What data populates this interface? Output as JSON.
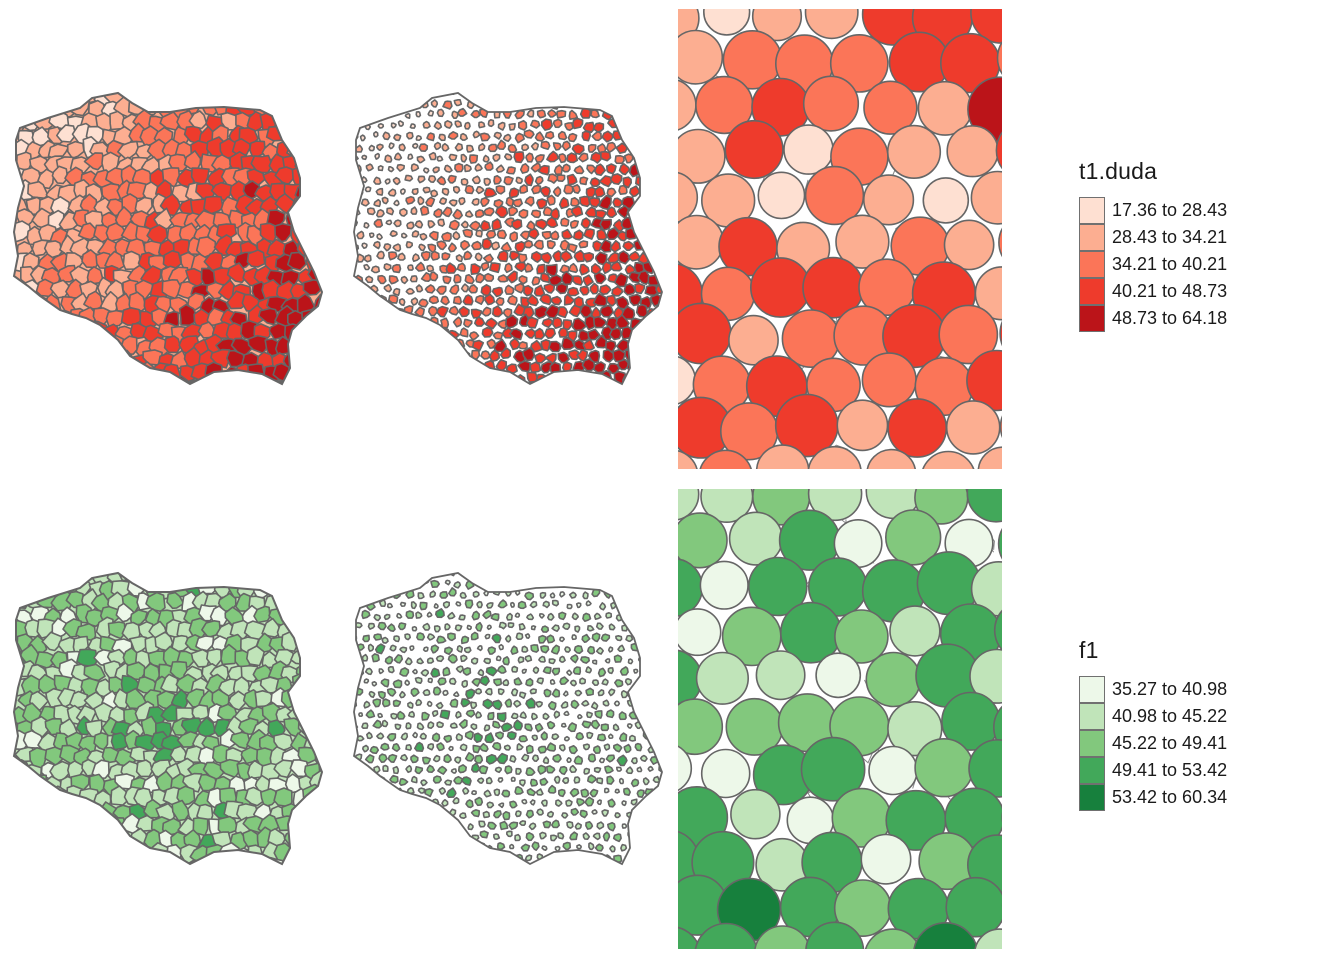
{
  "maps": [
    {
      "id": "t1-duda",
      "legend": {
        "title": "t1.duda",
        "classes": [
          {
            "label": "17.36 to 28.43",
            "color": "#fee0d2"
          },
          {
            "label": "28.43 to 34.21",
            "color": "#fcae91"
          },
          {
            "label": "34.21 to 40.21",
            "color": "#fb7558"
          },
          {
            "label": "40.21 to 48.73",
            "color": "#ee3b2c"
          },
          {
            "label": "48.73 to 64.18",
            "color": "#bb1419"
          }
        ]
      },
      "panels": [
        "choropleth",
        "cartogram-shrunk",
        "circle-cartogram-zoom"
      ]
    },
    {
      "id": "f1",
      "legend": {
        "title": "f1",
        "classes": [
          {
            "label": "35.27 to 40.98",
            "color": "#edf8e9"
          },
          {
            "label": "40.98 to 45.22",
            "color": "#c0e4b9"
          },
          {
            "label": "45.22 to 49.41",
            "color": "#82c87d"
          },
          {
            "label": "49.41 to 53.42",
            "color": "#42a85a"
          },
          {
            "label": "53.42 to 60.34",
            "color": "#17803d"
          }
        ]
      },
      "panels": [
        "choropleth",
        "cartogram-shrunk",
        "circle-cartogram-zoom"
      ]
    }
  ],
  "style": {
    "border_color": "#666666",
    "background": "#ffffff"
  }
}
